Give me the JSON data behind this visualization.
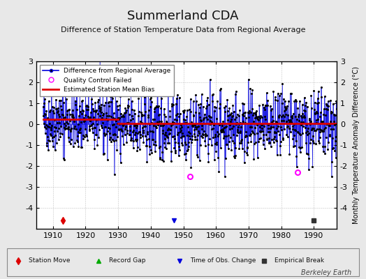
{
  "title": "Summerland CDA",
  "subtitle": "Difference of Station Temperature Data from Regional Average",
  "ylabel": "Monthly Temperature Anomaly Difference (°C)",
  "credit": "Berkeley Earth",
  "xlim": [
    1905,
    1997
  ],
  "ylim": [
    -5,
    3
  ],
  "yticks": [
    -4,
    -3,
    -2,
    -1,
    0,
    1,
    2,
    3
  ],
  "xticks": [
    1910,
    1920,
    1930,
    1940,
    1950,
    1960,
    1970,
    1980,
    1990
  ],
  "start_year": 1907,
  "end_year": 1996,
  "seed": 42,
  "bias_segments": [
    {
      "start": 1907,
      "end": 1930,
      "bias": 0.15
    },
    {
      "start": 1930,
      "end": 1996,
      "bias": -0.05
    }
  ],
  "station_move_years": [
    1913
  ],
  "record_gap_years": [],
  "obs_change_years": [
    1947
  ],
  "empirical_break_years": [
    1990
  ],
  "qc_failed_years": [
    1952,
    1985
  ],
  "line_color": "#0000dd",
  "dot_color": "#000000",
  "bias_color": "#dd0000",
  "qc_color": "#ff00ff",
  "station_move_color": "#dd0000",
  "obs_change_color": "#0000dd",
  "empirical_break_color": "#333333",
  "record_gap_color": "#00aa00",
  "background_color": "#e8e8e8",
  "plot_background": "#ffffff"
}
